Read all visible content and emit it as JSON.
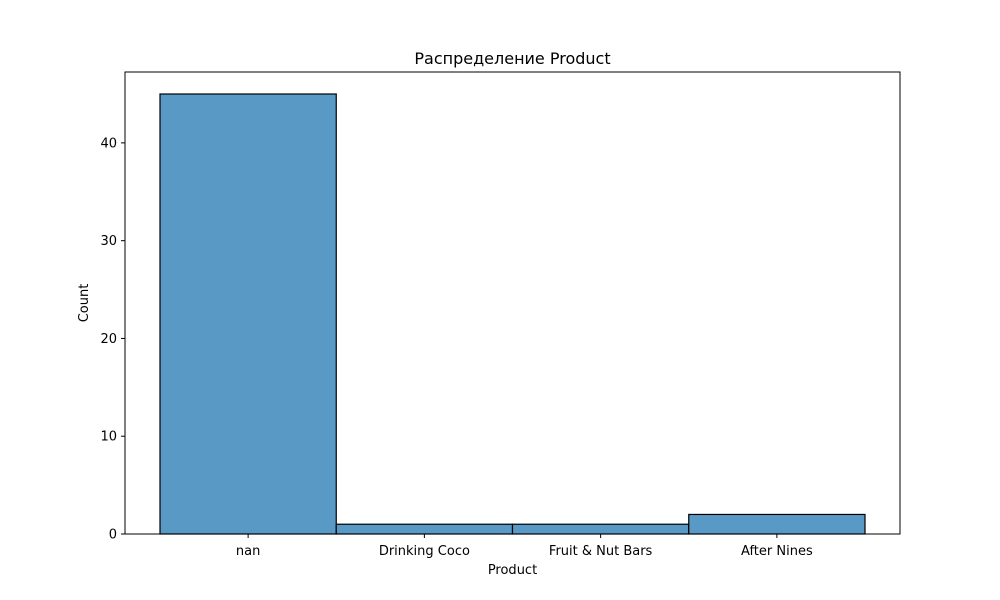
{
  "chart_data": {
    "type": "bar",
    "title": "Распределение Product",
    "xlabel": "Product",
    "ylabel": "Count",
    "categories": [
      "nan",
      "Drinking Coco",
      "Fruit & Nut Bars",
      "After Nines"
    ],
    "values": [
      45,
      1,
      1,
      2
    ],
    "ylim": [
      0,
      47.25
    ],
    "yticks": [
      0,
      10,
      20,
      30,
      40
    ],
    "grid": false,
    "legend": "none",
    "colors": {
      "bar_fill": "#5899c6",
      "bar_edge": "#000000",
      "axes": "#000000"
    }
  }
}
